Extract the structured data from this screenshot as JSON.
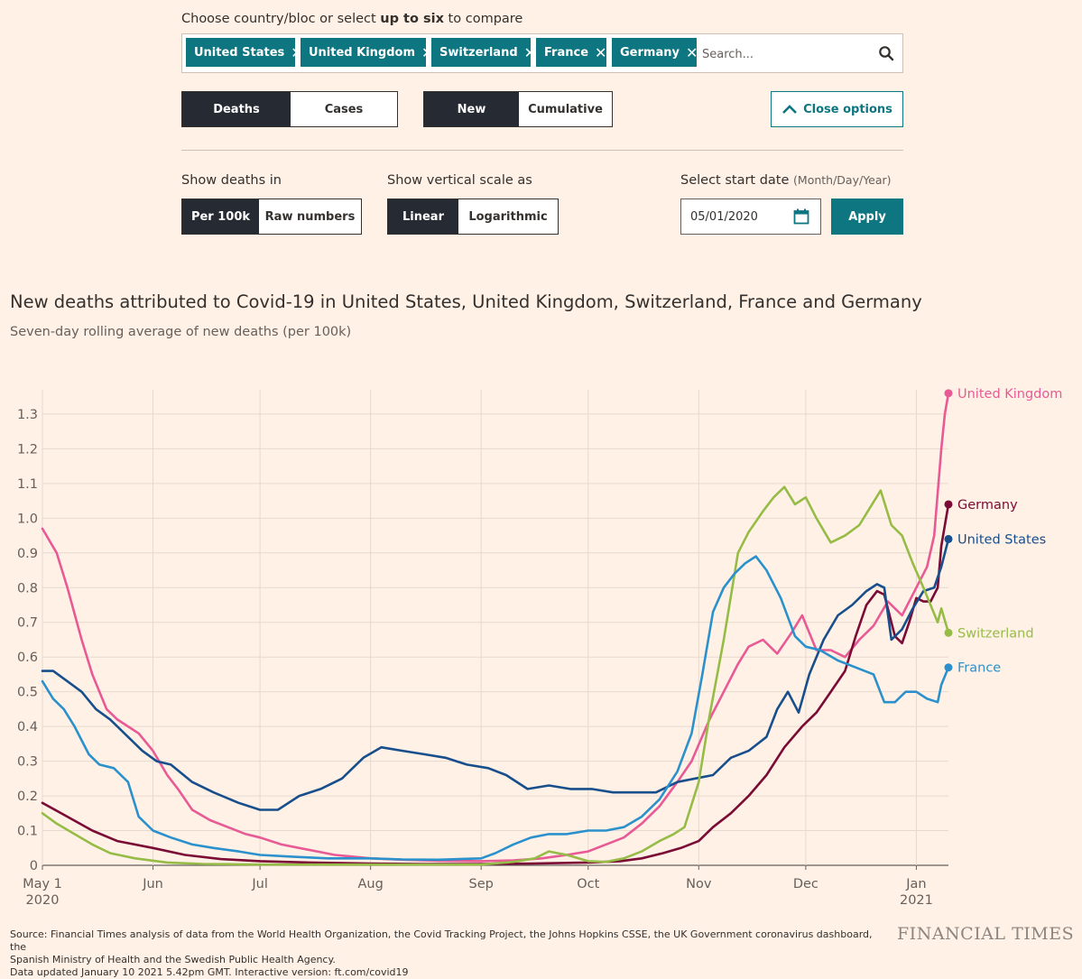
{
  "controls": {
    "choose_label_pre": "Choose country/bloc or select ",
    "choose_label_bold": "up to six",
    "choose_label_post": " to compare",
    "tags": [
      "United States",
      "United Kingdom",
      "Switzerland",
      "France",
      "Germany"
    ],
    "search_placeholder": "Search...",
    "metric_options": [
      "Deaths",
      "Cases"
    ],
    "metric_selected": "Deaths",
    "mode_options": [
      "New",
      "Cumulative"
    ],
    "mode_selected": "New",
    "close_options_label": "Close options",
    "show_deaths_label": "Show deaths in",
    "unit_options": [
      "Per 100k",
      "Raw numbers"
    ],
    "unit_selected": "Per 100k",
    "scale_label": "Show vertical scale as",
    "scale_options": [
      "Linear",
      "Logarithmic"
    ],
    "scale_selected": "Linear",
    "start_date_label": "Select start date",
    "start_date_hint": "(Month/Day/Year)",
    "start_date_value": "05/01/2020",
    "apply_label": "Apply"
  },
  "colors": {
    "background": "#fff1e5",
    "accent": "#0d7680",
    "selected": "#262a33",
    "United Kingdom": "#e85a95",
    "Germany": "#7a0b35",
    "United States": "#174e8c",
    "Switzerland": "#96bc47",
    "France": "#2b91cd"
  },
  "chart_data": {
    "type": "line",
    "title": "New deaths attributed to Covid-19 in United States, United Kingdom, Switzerland, France and Germany",
    "subtitle": "Seven-day rolling average of new deaths (per 100k)",
    "y_ticks": [
      0,
      0.1,
      0.2,
      0.3,
      0.4,
      0.5,
      0.6,
      0.7,
      0.8,
      0.9,
      1.0,
      1.1,
      1.2,
      1.3
    ],
    "y_tick_labels": [
      "0",
      "0.1",
      "0.2",
      "0.3",
      "0.4",
      "0.5",
      "0.6",
      "0.7",
      "0.8",
      "0.9",
      "1.0",
      "1.1",
      "1.2",
      "1.3"
    ],
    "ylim": [
      0,
      1.37
    ],
    "x_ticks": [
      {
        "date": "2020-05-01",
        "label": "May 1",
        "label2": "2020"
      },
      {
        "date": "2020-06-01",
        "label": "Jun",
        "label2": ""
      },
      {
        "date": "2020-07-01",
        "label": "Jul",
        "label2": ""
      },
      {
        "date": "2020-08-01",
        "label": "Aug",
        "label2": ""
      },
      {
        "date": "2020-09-01",
        "label": "Sep",
        "label2": ""
      },
      {
        "date": "2020-10-01",
        "label": "Oct",
        "label2": ""
      },
      {
        "date": "2020-11-01",
        "label": "Nov",
        "label2": ""
      },
      {
        "date": "2020-12-01",
        "label": "Dec",
        "label2": ""
      },
      {
        "date": "2021-01-01",
        "label": "Jan",
        "label2": "2021"
      }
    ],
    "xlim": [
      "2020-05-01",
      "2021-01-10"
    ],
    "grid": true,
    "legend": "end-of-line labels",
    "series": [
      {
        "name": "United Kingdom",
        "x": [
          "2020-05-01",
          "2020-05-05",
          "2020-05-08",
          "2020-05-12",
          "2020-05-15",
          "2020-05-19",
          "2020-05-22",
          "2020-05-25",
          "2020-05-28",
          "2020-06-01",
          "2020-06-05",
          "2020-06-08",
          "2020-06-12",
          "2020-06-17",
          "2020-06-22",
          "2020-06-27",
          "2020-07-01",
          "2020-07-07",
          "2020-07-12",
          "2020-07-17",
          "2020-07-22",
          "2020-08-01",
          "2020-08-10",
          "2020-08-20",
          "2020-09-01",
          "2020-09-10",
          "2020-09-18",
          "2020-09-25",
          "2020-10-01",
          "2020-10-06",
          "2020-10-11",
          "2020-10-16",
          "2020-10-21",
          "2020-10-26",
          "2020-10-30",
          "2020-11-04",
          "2020-11-08",
          "2020-11-12",
          "2020-11-15",
          "2020-11-19",
          "2020-11-23",
          "2020-11-27",
          "2020-11-30",
          "2020-12-04",
          "2020-12-08",
          "2020-12-12",
          "2020-12-16",
          "2020-12-20",
          "2020-12-24",
          "2020-12-28",
          "2021-01-01",
          "2021-01-04",
          "2021-01-06",
          "2021-01-08",
          "2021-01-09",
          "2021-01-10"
        ],
        "values": [
          0.97,
          0.9,
          0.8,
          0.65,
          0.55,
          0.45,
          0.42,
          0.4,
          0.38,
          0.33,
          0.26,
          0.22,
          0.16,
          0.13,
          0.11,
          0.09,
          0.08,
          0.06,
          0.05,
          0.04,
          0.03,
          0.02,
          0.016,
          0.013,
          0.012,
          0.014,
          0.02,
          0.03,
          0.04,
          0.06,
          0.08,
          0.12,
          0.17,
          0.24,
          0.3,
          0.42,
          0.5,
          0.58,
          0.63,
          0.65,
          0.61,
          0.67,
          0.72,
          0.62,
          0.62,
          0.6,
          0.65,
          0.69,
          0.76,
          0.72,
          0.8,
          0.86,
          0.95,
          1.2,
          1.3,
          1.36
        ]
      },
      {
        "name": "Germany",
        "x": [
          "2020-05-01",
          "2020-05-08",
          "2020-05-15",
          "2020-05-22",
          "2020-06-01",
          "2020-06-10",
          "2020-06-20",
          "2020-07-01",
          "2020-07-15",
          "2020-08-01",
          "2020-08-15",
          "2020-09-01",
          "2020-09-15",
          "2020-10-01",
          "2020-10-10",
          "2020-10-16",
          "2020-10-22",
          "2020-10-27",
          "2020-11-01",
          "2020-11-05",
          "2020-11-10",
          "2020-11-15",
          "2020-11-20",
          "2020-11-25",
          "2020-11-30",
          "2020-12-04",
          "2020-12-08",
          "2020-12-12",
          "2020-12-15",
          "2020-12-18",
          "2020-12-21",
          "2020-12-23",
          "2020-12-26",
          "2020-12-28",
          "2020-12-30",
          "2021-01-01",
          "2021-01-03",
          "2021-01-05",
          "2021-01-07",
          "2021-01-08",
          "2021-01-10"
        ],
        "values": [
          0.18,
          0.14,
          0.1,
          0.07,
          0.05,
          0.03,
          0.018,
          0.012,
          0.008,
          0.005,
          0.004,
          0.004,
          0.005,
          0.008,
          0.012,
          0.02,
          0.035,
          0.05,
          0.07,
          0.11,
          0.15,
          0.2,
          0.26,
          0.34,
          0.4,
          0.44,
          0.5,
          0.56,
          0.66,
          0.75,
          0.79,
          0.78,
          0.66,
          0.64,
          0.7,
          0.77,
          0.76,
          0.76,
          0.8,
          0.92,
          1.04
        ]
      },
      {
        "name": "United States",
        "x": [
          "2020-05-01",
          "2020-05-04",
          "2020-05-08",
          "2020-05-12",
          "2020-05-16",
          "2020-05-20",
          "2020-05-25",
          "2020-05-29",
          "2020-06-02",
          "2020-06-06",
          "2020-06-12",
          "2020-06-18",
          "2020-06-25",
          "2020-07-01",
          "2020-07-06",
          "2020-07-12",
          "2020-07-18",
          "2020-07-24",
          "2020-07-30",
          "2020-08-04",
          "2020-08-10",
          "2020-08-16",
          "2020-08-22",
          "2020-08-28",
          "2020-09-03",
          "2020-09-08",
          "2020-09-14",
          "2020-09-20",
          "2020-09-26",
          "2020-10-02",
          "2020-10-08",
          "2020-10-14",
          "2020-10-20",
          "2020-10-26",
          "2020-10-31",
          "2020-11-05",
          "2020-11-10",
          "2020-11-15",
          "2020-11-20",
          "2020-11-23",
          "2020-11-26",
          "2020-11-29",
          "2020-12-02",
          "2020-12-06",
          "2020-12-10",
          "2020-12-14",
          "2020-12-18",
          "2020-12-21",
          "2020-12-23",
          "2020-12-25",
          "2020-12-28",
          "2020-12-31",
          "2021-01-03",
          "2021-01-06",
          "2021-01-08",
          "2021-01-10"
        ],
        "values": [
          0.56,
          0.56,
          0.53,
          0.5,
          0.45,
          0.42,
          0.37,
          0.33,
          0.3,
          0.29,
          0.24,
          0.21,
          0.18,
          0.16,
          0.16,
          0.2,
          0.22,
          0.25,
          0.31,
          0.34,
          0.33,
          0.32,
          0.31,
          0.29,
          0.28,
          0.26,
          0.22,
          0.23,
          0.22,
          0.22,
          0.21,
          0.21,
          0.21,
          0.24,
          0.25,
          0.26,
          0.31,
          0.33,
          0.37,
          0.45,
          0.5,
          0.44,
          0.55,
          0.65,
          0.72,
          0.75,
          0.79,
          0.81,
          0.8,
          0.65,
          0.68,
          0.74,
          0.79,
          0.8,
          0.86,
          0.94
        ]
      },
      {
        "name": "Switzerland",
        "x": [
          "2020-05-01",
          "2020-05-05",
          "2020-05-10",
          "2020-05-15",
          "2020-05-20",
          "2020-05-27",
          "2020-06-05",
          "2020-06-15",
          "2020-07-01",
          "2020-07-15",
          "2020-08-01",
          "2020-08-15",
          "2020-09-01",
          "2020-09-10",
          "2020-09-16",
          "2020-09-20",
          "2020-09-25",
          "2020-10-01",
          "2020-10-06",
          "2020-10-11",
          "2020-10-16",
          "2020-10-21",
          "2020-10-25",
          "2020-10-28",
          "2020-11-01",
          "2020-11-04",
          "2020-11-08",
          "2020-11-12",
          "2020-11-15",
          "2020-11-19",
          "2020-11-22",
          "2020-11-25",
          "2020-11-28",
          "2020-12-01",
          "2020-12-04",
          "2020-12-08",
          "2020-12-12",
          "2020-12-16",
          "2020-12-19",
          "2020-12-22",
          "2020-12-25",
          "2020-12-28",
          "2020-12-31",
          "2021-01-03",
          "2021-01-05",
          "2021-01-07",
          "2021-01-08",
          "2021-01-10"
        ],
        "values": [
          0.15,
          0.12,
          0.09,
          0.06,
          0.035,
          0.02,
          0.008,
          0.004,
          0.002,
          0.002,
          0.002,
          0.002,
          0.002,
          0.01,
          0.02,
          0.04,
          0.03,
          0.012,
          0.01,
          0.02,
          0.04,
          0.07,
          0.09,
          0.11,
          0.24,
          0.43,
          0.65,
          0.9,
          0.96,
          1.02,
          1.06,
          1.09,
          1.04,
          1.06,
          1.0,
          0.93,
          0.95,
          0.98,
          1.03,
          1.08,
          0.98,
          0.95,
          0.87,
          0.8,
          0.75,
          0.7,
          0.74,
          0.67
        ]
      },
      {
        "name": "France",
        "x": [
          "2020-05-01",
          "2020-05-04",
          "2020-05-07",
          "2020-05-10",
          "2020-05-14",
          "2020-05-17",
          "2020-05-21",
          "2020-05-25",
          "2020-05-28",
          "2020-06-01",
          "2020-06-06",
          "2020-06-12",
          "2020-06-18",
          "2020-06-25",
          "2020-07-01",
          "2020-07-10",
          "2020-07-20",
          "2020-08-01",
          "2020-08-10",
          "2020-08-20",
          "2020-09-01",
          "2020-09-05",
          "2020-09-10",
          "2020-09-15",
          "2020-09-20",
          "2020-09-25",
          "2020-10-01",
          "2020-10-06",
          "2020-10-11",
          "2020-10-16",
          "2020-10-21",
          "2020-10-26",
          "2020-10-30",
          "2020-11-02",
          "2020-11-05",
          "2020-11-08",
          "2020-11-11",
          "2020-11-14",
          "2020-11-17",
          "2020-11-20",
          "2020-11-24",
          "2020-11-28",
          "2020-12-01",
          "2020-12-05",
          "2020-12-10",
          "2020-12-15",
          "2020-12-20",
          "2020-12-23",
          "2020-12-26",
          "2020-12-29",
          "2021-01-01",
          "2021-01-04",
          "2021-01-07",
          "2021-01-08",
          "2021-01-10"
        ],
        "values": [
          0.53,
          0.48,
          0.45,
          0.4,
          0.32,
          0.29,
          0.28,
          0.24,
          0.14,
          0.1,
          0.08,
          0.06,
          0.05,
          0.04,
          0.03,
          0.025,
          0.02,
          0.02,
          0.017,
          0.016,
          0.02,
          0.035,
          0.06,
          0.08,
          0.09,
          0.09,
          0.1,
          0.1,
          0.11,
          0.14,
          0.19,
          0.27,
          0.38,
          0.55,
          0.73,
          0.8,
          0.84,
          0.87,
          0.89,
          0.85,
          0.77,
          0.66,
          0.63,
          0.62,
          0.59,
          0.57,
          0.55,
          0.47,
          0.47,
          0.5,
          0.5,
          0.48,
          0.47,
          0.52,
          0.57
        ]
      }
    ]
  },
  "footer": {
    "source_line1": "Source: Financial Times analysis of data from the World Health Organization, the Covid Tracking Project, the Johns Hopkins CSSE, the UK Government coronavirus dashboard, the",
    "source_line2": "Spanish Ministry of Health and the Swedish Public Health Agency.",
    "source_line3": "Data updated January 10 2021 5.42pm GMT. Interactive version: ft.com/covid19",
    "logo": "FINANCIAL TIMES"
  }
}
